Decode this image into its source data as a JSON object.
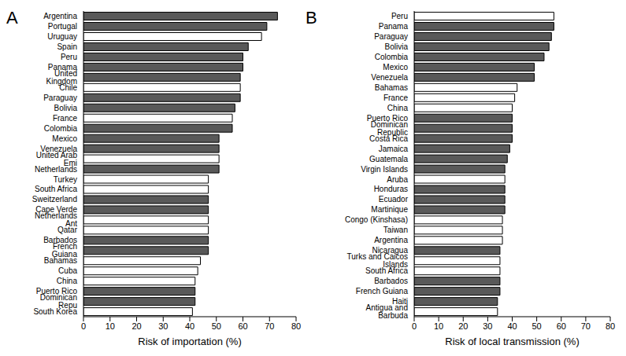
{
  "chart_data": [
    {
      "type": "bar",
      "title": "A",
      "orientation": "horizontal",
      "x_label": "Risk of importation (%)",
      "categories": [
        "Argentina",
        "Portugal",
        "Uruguay",
        "Spain",
        "Peru",
        "Panama",
        "United Kingdom",
        "Chile",
        "Paraguay",
        "Bolivia",
        "France",
        "Colombia",
        "Mexico",
        "Venezuela",
        "United Arab Emi",
        "Netherlands",
        "Turkey",
        "South Africa",
        "Sweitzerland",
        "Cape Verde",
        "Netherlands Ant",
        "Qatar",
        "Barbados",
        "French Guiana",
        "Bahamas",
        "Cuba",
        "China",
        "Puerto Rico",
        "Dominican Repu",
        "South Korea"
      ],
      "values": [
        73,
        69,
        67,
        62,
        60,
        60,
        59,
        59,
        59,
        57,
        56,
        56,
        51,
        51,
        51,
        51,
        47,
        47,
        47,
        47,
        47,
        47,
        47,
        47,
        44,
        43,
        42,
        42,
        42,
        41
      ],
      "colors": [
        "#595959",
        "#595959",
        "#ffffff",
        "#595959",
        "#595959",
        "#595959",
        "#595959",
        "#ffffff",
        "#595959",
        "#595959",
        "#ffffff",
        "#595959",
        "#595959",
        "#595959",
        "#ffffff",
        "#595959",
        "#ffffff",
        "#ffffff",
        "#595959",
        "#595959",
        "#ffffff",
        "#ffffff",
        "#595959",
        "#595959",
        "#ffffff",
        "#ffffff",
        "#ffffff",
        "#595959",
        "#595959",
        "#ffffff"
      ],
      "xlim": [
        0,
        80
      ],
      "xticks": [
        0,
        10,
        20,
        30,
        40,
        50,
        60,
        70,
        80
      ],
      "grid": false
    },
    {
      "type": "bar",
      "title": "B",
      "orientation": "horizontal",
      "x_label": "Risk of local transmission (%)",
      "categories": [
        "Peru",
        "Panama",
        "Paraguay",
        "Bolivia",
        "Colombia",
        "Mexico",
        "Venezuela",
        "Bahamas",
        "France",
        "China",
        "Puerto Rico",
        "Dominican Republic",
        "Costa Rica",
        "Jamaica",
        "Guatemala",
        "Virgin Islands",
        "Aruba",
        "Honduras",
        "Ecuador",
        "Martinique",
        "Congo (Kinshasa)",
        "Taiwan",
        "Argentina",
        "Nicaragua",
        "Turks and Caicos Islands",
        "South Africa",
        "Barbados",
        "French Guiana",
        "Haiti",
        "Antigua and Barbuda"
      ],
      "values": [
        57,
        57,
        56,
        55,
        53,
        49,
        49,
        42,
        41,
        40,
        40,
        40,
        40,
        39,
        38,
        37,
        37,
        37,
        37,
        37,
        36,
        36,
        36,
        35,
        35,
        35,
        35,
        35,
        34,
        34
      ],
      "colors": [
        "#ffffff",
        "#595959",
        "#595959",
        "#595959",
        "#595959",
        "#595959",
        "#595959",
        "#ffffff",
        "#ffffff",
        "#ffffff",
        "#595959",
        "#595959",
        "#595959",
        "#595959",
        "#595959",
        "#595959",
        "#ffffff",
        "#595959",
        "#595959",
        "#595959",
        "#ffffff",
        "#ffffff",
        "#ffffff",
        "#595959",
        "#ffffff",
        "#ffffff",
        "#595959",
        "#595959",
        "#595959",
        "#ffffff"
      ],
      "xlim": [
        0,
        80
      ],
      "xticks": [
        0,
        10,
        20,
        30,
        40,
        50,
        60,
        70,
        80
      ],
      "grid": false
    }
  ]
}
